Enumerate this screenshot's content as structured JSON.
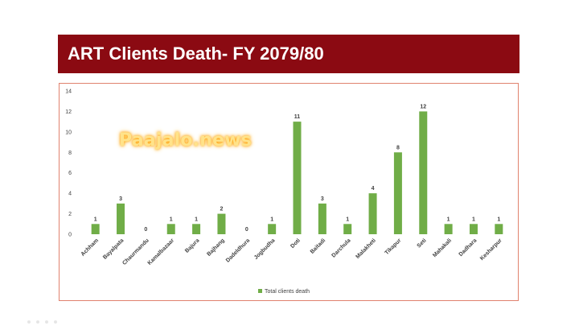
{
  "slide": {
    "title": "ART Clients Death- FY 2079/80",
    "watermark": "Paajalo.news"
  },
  "chart_data": {
    "type": "bar",
    "categories": [
      "Achham",
      "Bayalpata",
      "Chaurmandu",
      "Kamalbazaar",
      "Bajura",
      "Bajhang",
      "Dadeldhura",
      "Jogbudha",
      "Doti",
      "Baitadi",
      "Darchula",
      "Malakheti",
      "Tikapur",
      "Seti",
      "Mahakali",
      "Dadhara",
      "Kesharpur"
    ],
    "series": [
      {
        "name": "Total clients death",
        "values": [
          1,
          3,
          0,
          1,
          1,
          2,
          0,
          1,
          11,
          3,
          1,
          4,
          8,
          12,
          1,
          1,
          1
        ]
      }
    ],
    "ylim": [
      0,
      14
    ],
    "yticks": [
      0,
      2,
      4,
      6,
      8,
      10,
      12,
      14
    ],
    "legend_position": "bottom",
    "grid": false,
    "bar_color": "#70ad47"
  }
}
